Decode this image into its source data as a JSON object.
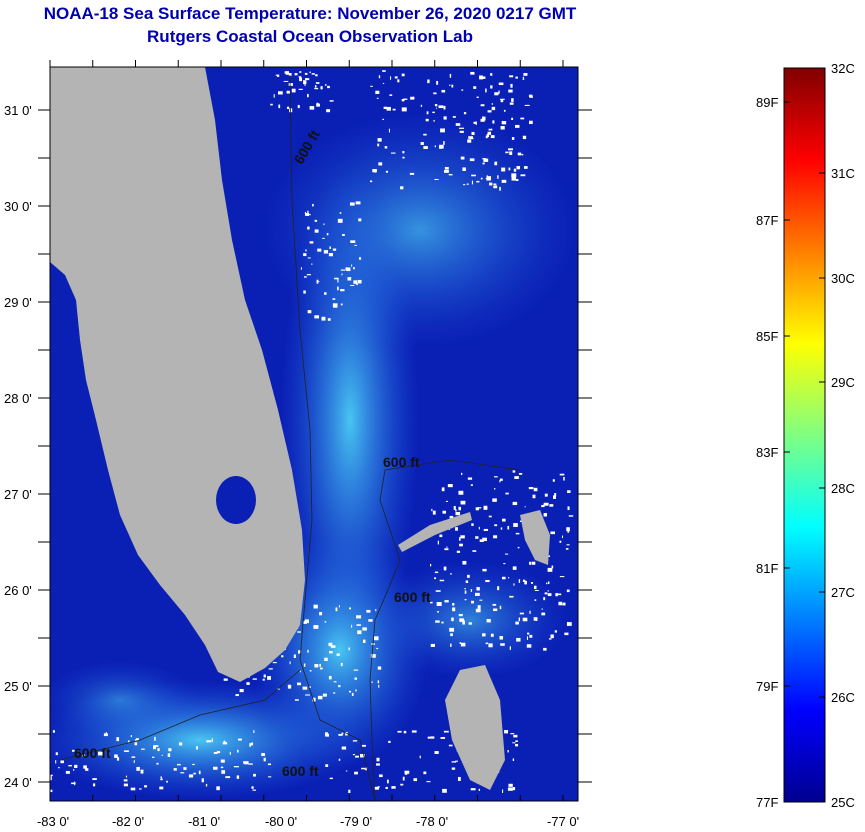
{
  "title": {
    "line1": "NOAA-18 Sea Surface Temperature:  November 26, 2020 0217 GMT",
    "line2": "Rutgers Coastal Ocean Observation Lab"
  },
  "map": {
    "lat_labels": [
      "31 0'",
      "30 0'",
      "29 0'",
      "28 0'",
      "27 0'",
      "26 0'",
      "25 0'",
      "24 0'"
    ],
    "lon_labels": [
      "-83 0'",
      "-82 0'",
      "-81 0'",
      "-80 0'",
      "-79 0'",
      "-78 0'",
      "-77 0'"
    ],
    "contour_labels": [
      "600 ft",
      "600 ft",
      "600 ft",
      "600 ft",
      "600 ft"
    ],
    "colors": {
      "ocean_cold": "#0a1fb4",
      "ocean_warm": "#3cc8f0",
      "land": "#b4b4b4",
      "cloud": "#ffffff"
    }
  },
  "colorbar": {
    "f_labels": [
      "89F",
      "87F",
      "85F",
      "83F",
      "81F",
      "79F",
      "77F"
    ],
    "c_labels": [
      "32C",
      "31C",
      "30C",
      "29C",
      "28C",
      "27C",
      "26C",
      "25C"
    ],
    "min_c": 25,
    "max_c": 32
  }
}
